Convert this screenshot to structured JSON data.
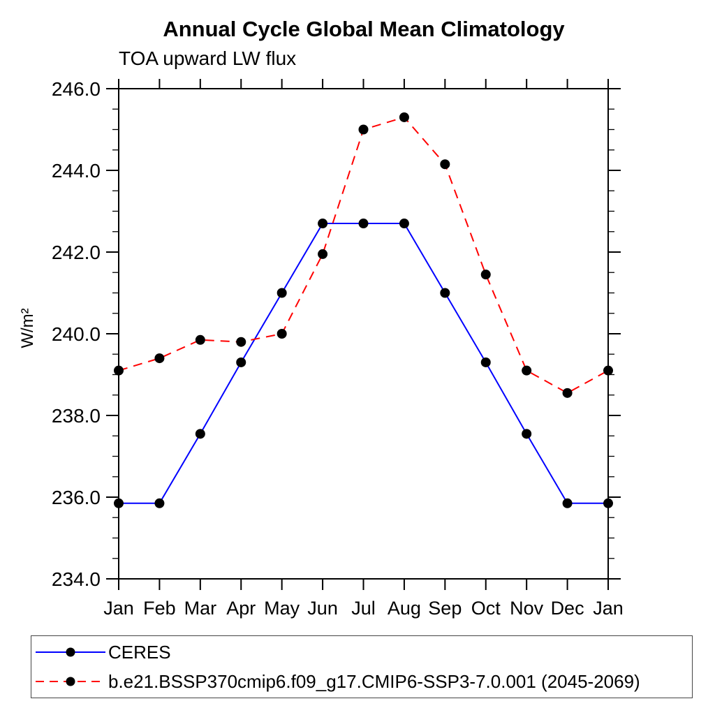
{
  "chart_data": {
    "type": "line",
    "title": "Annual Cycle Global Mean Climatology",
    "subtitle": "TOA upward LW flux",
    "ylabel": "W/m²",
    "x_categories": [
      "Jan",
      "Feb",
      "Mar",
      "Apr",
      "May",
      "Jun",
      "Jul",
      "Aug",
      "Sep",
      "Oct",
      "Nov",
      "Dec",
      "Jan"
    ],
    "ylim": [
      234.0,
      246.0
    ],
    "ytick_major_step": 2.0,
    "ytick_minor_step": 0.5,
    "ytick_labels": [
      "234.0",
      "236.0",
      "238.0",
      "240.0",
      "242.0",
      "244.0",
      "246.0"
    ],
    "grid": false,
    "legend_position": "bottom-left",
    "axis_color": "#000000",
    "marker": "filled-circle",
    "series": [
      {
        "name": "CERES",
        "line_color": "#0000ff",
        "line_style": "solid",
        "marker_color": "#000000",
        "values": [
          235.85,
          235.85,
          237.55,
          239.3,
          241.0,
          242.7,
          242.7,
          242.7,
          241.0,
          239.3,
          237.55,
          235.85,
          235.85
        ]
      },
      {
        "name": "b.e21.BSSP370cmip6.f09_g17.CMIP6-SSP3-7.0.001 (2045-2069)",
        "line_color": "#ff0000",
        "line_style": "dashed",
        "marker_color": "#000000",
        "values": [
          239.1,
          239.4,
          239.85,
          239.8,
          240.0,
          241.95,
          245.0,
          245.3,
          244.15,
          241.45,
          239.1,
          238.55,
          239.1
        ]
      }
    ]
  }
}
